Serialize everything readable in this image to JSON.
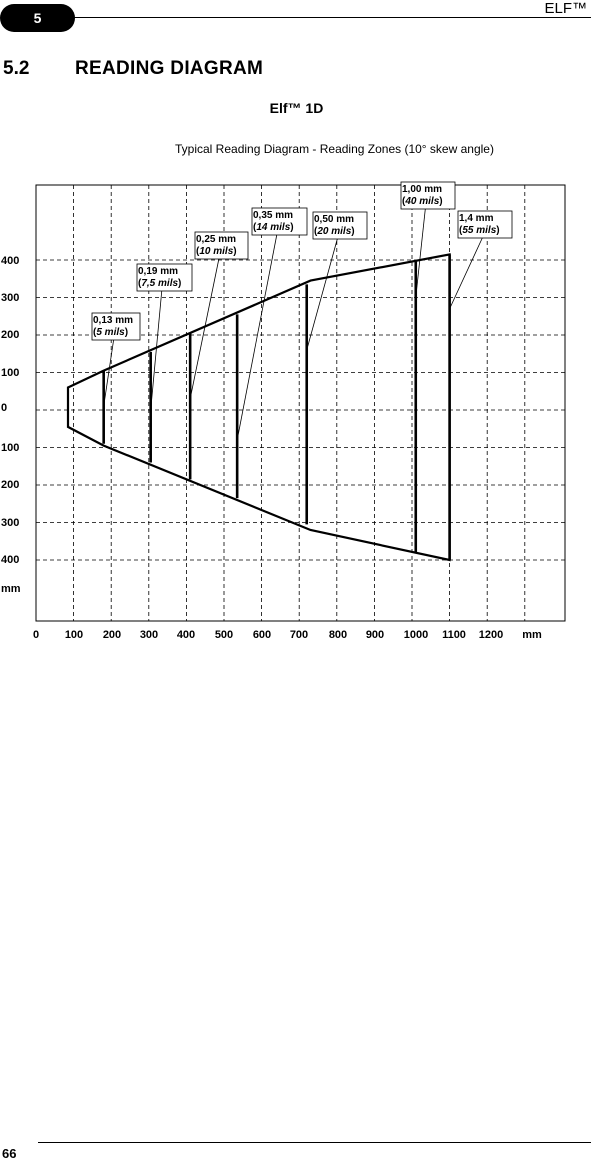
{
  "header": {
    "chapter": "5",
    "product": "ELF™"
  },
  "section": {
    "number": "5.2",
    "title": "READING DIAGRAM"
  },
  "diagram": {
    "title": "Elf™ 1D",
    "subtitle": "Typical Reading Diagram - Reading Zones (10° skew angle)"
  },
  "footer": {
    "page": "66"
  },
  "chart_data": {
    "type": "diagram",
    "x_unit": "mm",
    "y_unit": "mm",
    "x_ticks": [
      "0",
      "100",
      "200",
      "300",
      "400",
      "500",
      "600",
      "700",
      "800",
      "900",
      "1000",
      "1100",
      "1200"
    ],
    "y_ticks": [
      "400",
      "300",
      "200",
      "100",
      "0",
      "100",
      "200",
      "300",
      "400"
    ],
    "x_unit_label": "mm",
    "y_unit_label": "mm",
    "xlim": [
      0,
      1350
    ],
    "ylim": [
      -450,
      450
    ],
    "grid": true,
    "envelope": [
      {
        "x": 85,
        "y": 60
      },
      {
        "x": 180,
        "y": 105
      },
      {
        "x": 730,
        "y": 345
      },
      {
        "x": 1100,
        "y": 415
      },
      {
        "x": 1100,
        "y": -400
      },
      {
        "x": 730,
        "y": -320
      },
      {
        "x": 180,
        "y": -95
      },
      {
        "x": 85,
        "y": -45
      }
    ],
    "zones": [
      {
        "resolution": "0,13 mm",
        "mils": "5 mils",
        "x": 180,
        "top": 105,
        "bottom": -90
      },
      {
        "resolution": "0,19 mm",
        "mils": "7,5 mils",
        "x": 305,
        "top": 155,
        "bottom": -140
      },
      {
        "resolution": "0,25 mm",
        "mils": "10 mils",
        "x": 410,
        "top": 205,
        "bottom": -185
      },
      {
        "resolution": "0,35 mm",
        "mils": "14 mils",
        "x": 535,
        "top": 255,
        "bottom": -235
      },
      {
        "resolution": "0,50 mm",
        "mils": "20 mils",
        "x": 720,
        "top": 335,
        "bottom": -305
      },
      {
        "resolution": "1,00 mm",
        "mils": "40 mils",
        "x": 1010,
        "top": 400,
        "bottom": -380
      },
      {
        "resolution": "1,4 mm",
        "mils": "55 mils",
        "x": 1100,
        "top": 415,
        "bottom": -400
      }
    ]
  }
}
